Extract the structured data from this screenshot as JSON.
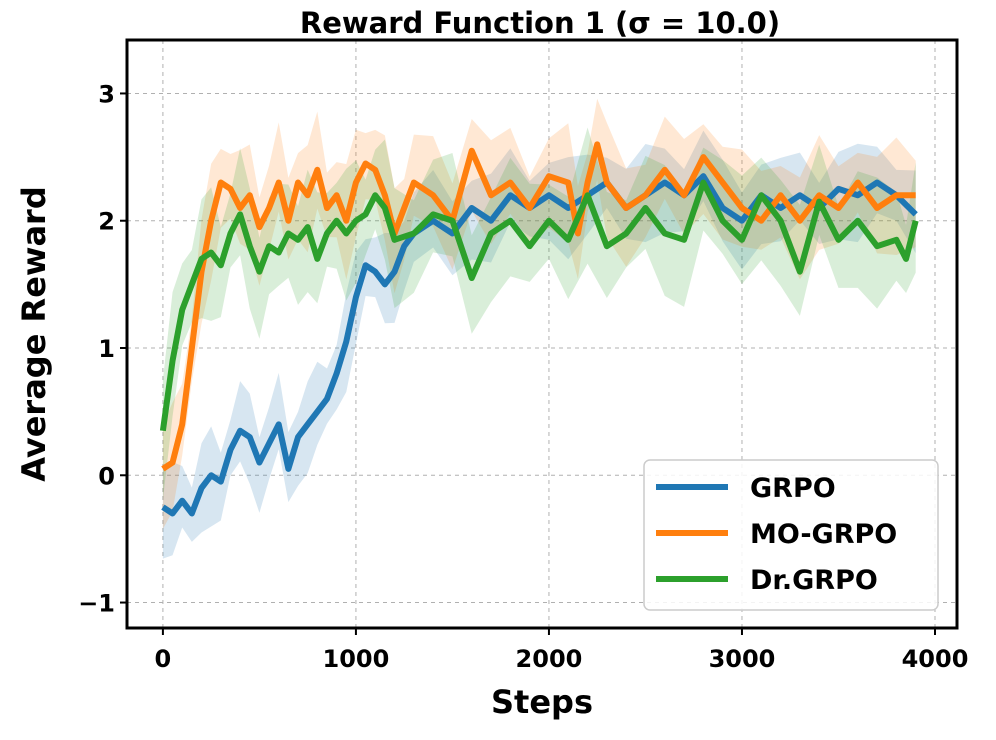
{
  "chart_data": {
    "type": "line",
    "title": "Reward Function 1 (σ = 10.0)",
    "xlabel": "Steps",
    "ylabel": "Average Reward",
    "xlim": [
      -186,
      4114
    ],
    "ylim": [
      -1.2,
      3.42
    ],
    "xticks": [
      0,
      1000,
      2000,
      3000,
      4000
    ],
    "xtick_labels": [
      "0",
      "1000",
      "2000",
      "3000",
      "4000"
    ],
    "yticks": [
      -1,
      0,
      1,
      2,
      3
    ],
    "ytick_labels": [
      "−1",
      "0",
      "1",
      "2",
      "3"
    ],
    "grid": true,
    "legend_position": "lower-right",
    "series": [
      {
        "name": "GRPO",
        "color": "#1f77b4",
        "band_halfwidth": 0.3,
        "x": [
          0,
          50,
          100,
          150,
          200,
          250,
          300,
          350,
          400,
          450,
          500,
          550,
          600,
          650,
          700,
          750,
          800,
          850,
          900,
          950,
          1000,
          1050,
          1100,
          1150,
          1200,
          1250,
          1300,
          1400,
          1500,
          1600,
          1700,
          1800,
          1900,
          2000,
          2100,
          2200,
          2300,
          2400,
          2500,
          2600,
          2700,
          2800,
          2900,
          3000,
          3100,
          3200,
          3300,
          3400,
          3500,
          3600,
          3700,
          3800,
          3900
        ],
        "y": [
          -0.25,
          -0.3,
          -0.2,
          -0.3,
          -0.1,
          0.0,
          -0.05,
          0.2,
          0.35,
          0.3,
          0.1,
          0.25,
          0.4,
          0.05,
          0.3,
          0.4,
          0.5,
          0.6,
          0.8,
          1.05,
          1.4,
          1.65,
          1.6,
          1.5,
          1.6,
          1.8,
          1.9,
          2.0,
          1.9,
          2.1,
          2.0,
          2.2,
          2.1,
          2.2,
          2.1,
          2.2,
          2.3,
          2.1,
          2.2,
          2.3,
          2.2,
          2.35,
          2.1,
          2.0,
          2.2,
          2.1,
          2.2,
          2.1,
          2.25,
          2.2,
          2.3,
          2.2,
          2.05
        ]
      },
      {
        "name": "MO-GRPO",
        "color": "#ff7f0e",
        "band_halfwidth": 0.35,
        "x": [
          0,
          50,
          100,
          150,
          200,
          250,
          300,
          350,
          400,
          450,
          500,
          550,
          600,
          650,
          700,
          750,
          800,
          850,
          900,
          950,
          1000,
          1050,
          1100,
          1150,
          1200,
          1250,
          1300,
          1400,
          1500,
          1600,
          1700,
          1800,
          1900,
          2000,
          2100,
          2150,
          2200,
          2250,
          2300,
          2400,
          2500,
          2600,
          2700,
          2800,
          2900,
          3000,
          3100,
          3200,
          3300,
          3400,
          3500,
          3600,
          3700,
          3800,
          3900
        ],
        "y": [
          0.05,
          0.1,
          0.4,
          1.0,
          1.6,
          2.0,
          2.3,
          2.25,
          2.1,
          2.2,
          1.95,
          2.1,
          2.3,
          2.0,
          2.3,
          2.2,
          2.4,
          2.1,
          2.2,
          2.0,
          2.3,
          2.45,
          2.4,
          2.2,
          1.9,
          2.1,
          2.3,
          2.2,
          2.0,
          2.55,
          2.2,
          2.3,
          2.1,
          2.35,
          2.3,
          1.9,
          2.3,
          2.6,
          2.3,
          2.1,
          2.2,
          2.4,
          2.2,
          2.5,
          2.3,
          2.1,
          2.0,
          2.2,
          2.0,
          2.2,
          2.1,
          2.3,
          2.1,
          2.2,
          2.2
        ]
      },
      {
        "name": "Dr.GRPO",
        "color": "#2ca02c",
        "band_halfwidth": 0.4,
        "x": [
          0,
          50,
          100,
          150,
          200,
          250,
          300,
          350,
          400,
          450,
          500,
          550,
          600,
          650,
          700,
          750,
          800,
          850,
          900,
          950,
          1000,
          1050,
          1100,
          1150,
          1200,
          1300,
          1400,
          1500,
          1600,
          1700,
          1800,
          1900,
          2000,
          2100,
          2200,
          2300,
          2400,
          2500,
          2600,
          2700,
          2800,
          2900,
          3000,
          3100,
          3200,
          3300,
          3400,
          3500,
          3600,
          3700,
          3800,
          3850,
          3900
        ],
        "y": [
          0.35,
          0.9,
          1.3,
          1.5,
          1.7,
          1.75,
          1.65,
          1.9,
          2.05,
          1.8,
          1.6,
          1.8,
          1.75,
          1.9,
          1.85,
          1.95,
          1.7,
          1.9,
          2.0,
          1.9,
          2.0,
          2.05,
          2.2,
          2.1,
          1.85,
          1.9,
          2.05,
          2.0,
          1.55,
          1.9,
          2.0,
          1.8,
          2.0,
          1.85,
          2.2,
          1.8,
          1.9,
          2.1,
          1.9,
          1.85,
          2.3,
          2.0,
          1.85,
          2.2,
          2.0,
          1.6,
          2.15,
          1.85,
          2.0,
          1.8,
          1.85,
          1.7,
          2.0
        ]
      }
    ]
  }
}
